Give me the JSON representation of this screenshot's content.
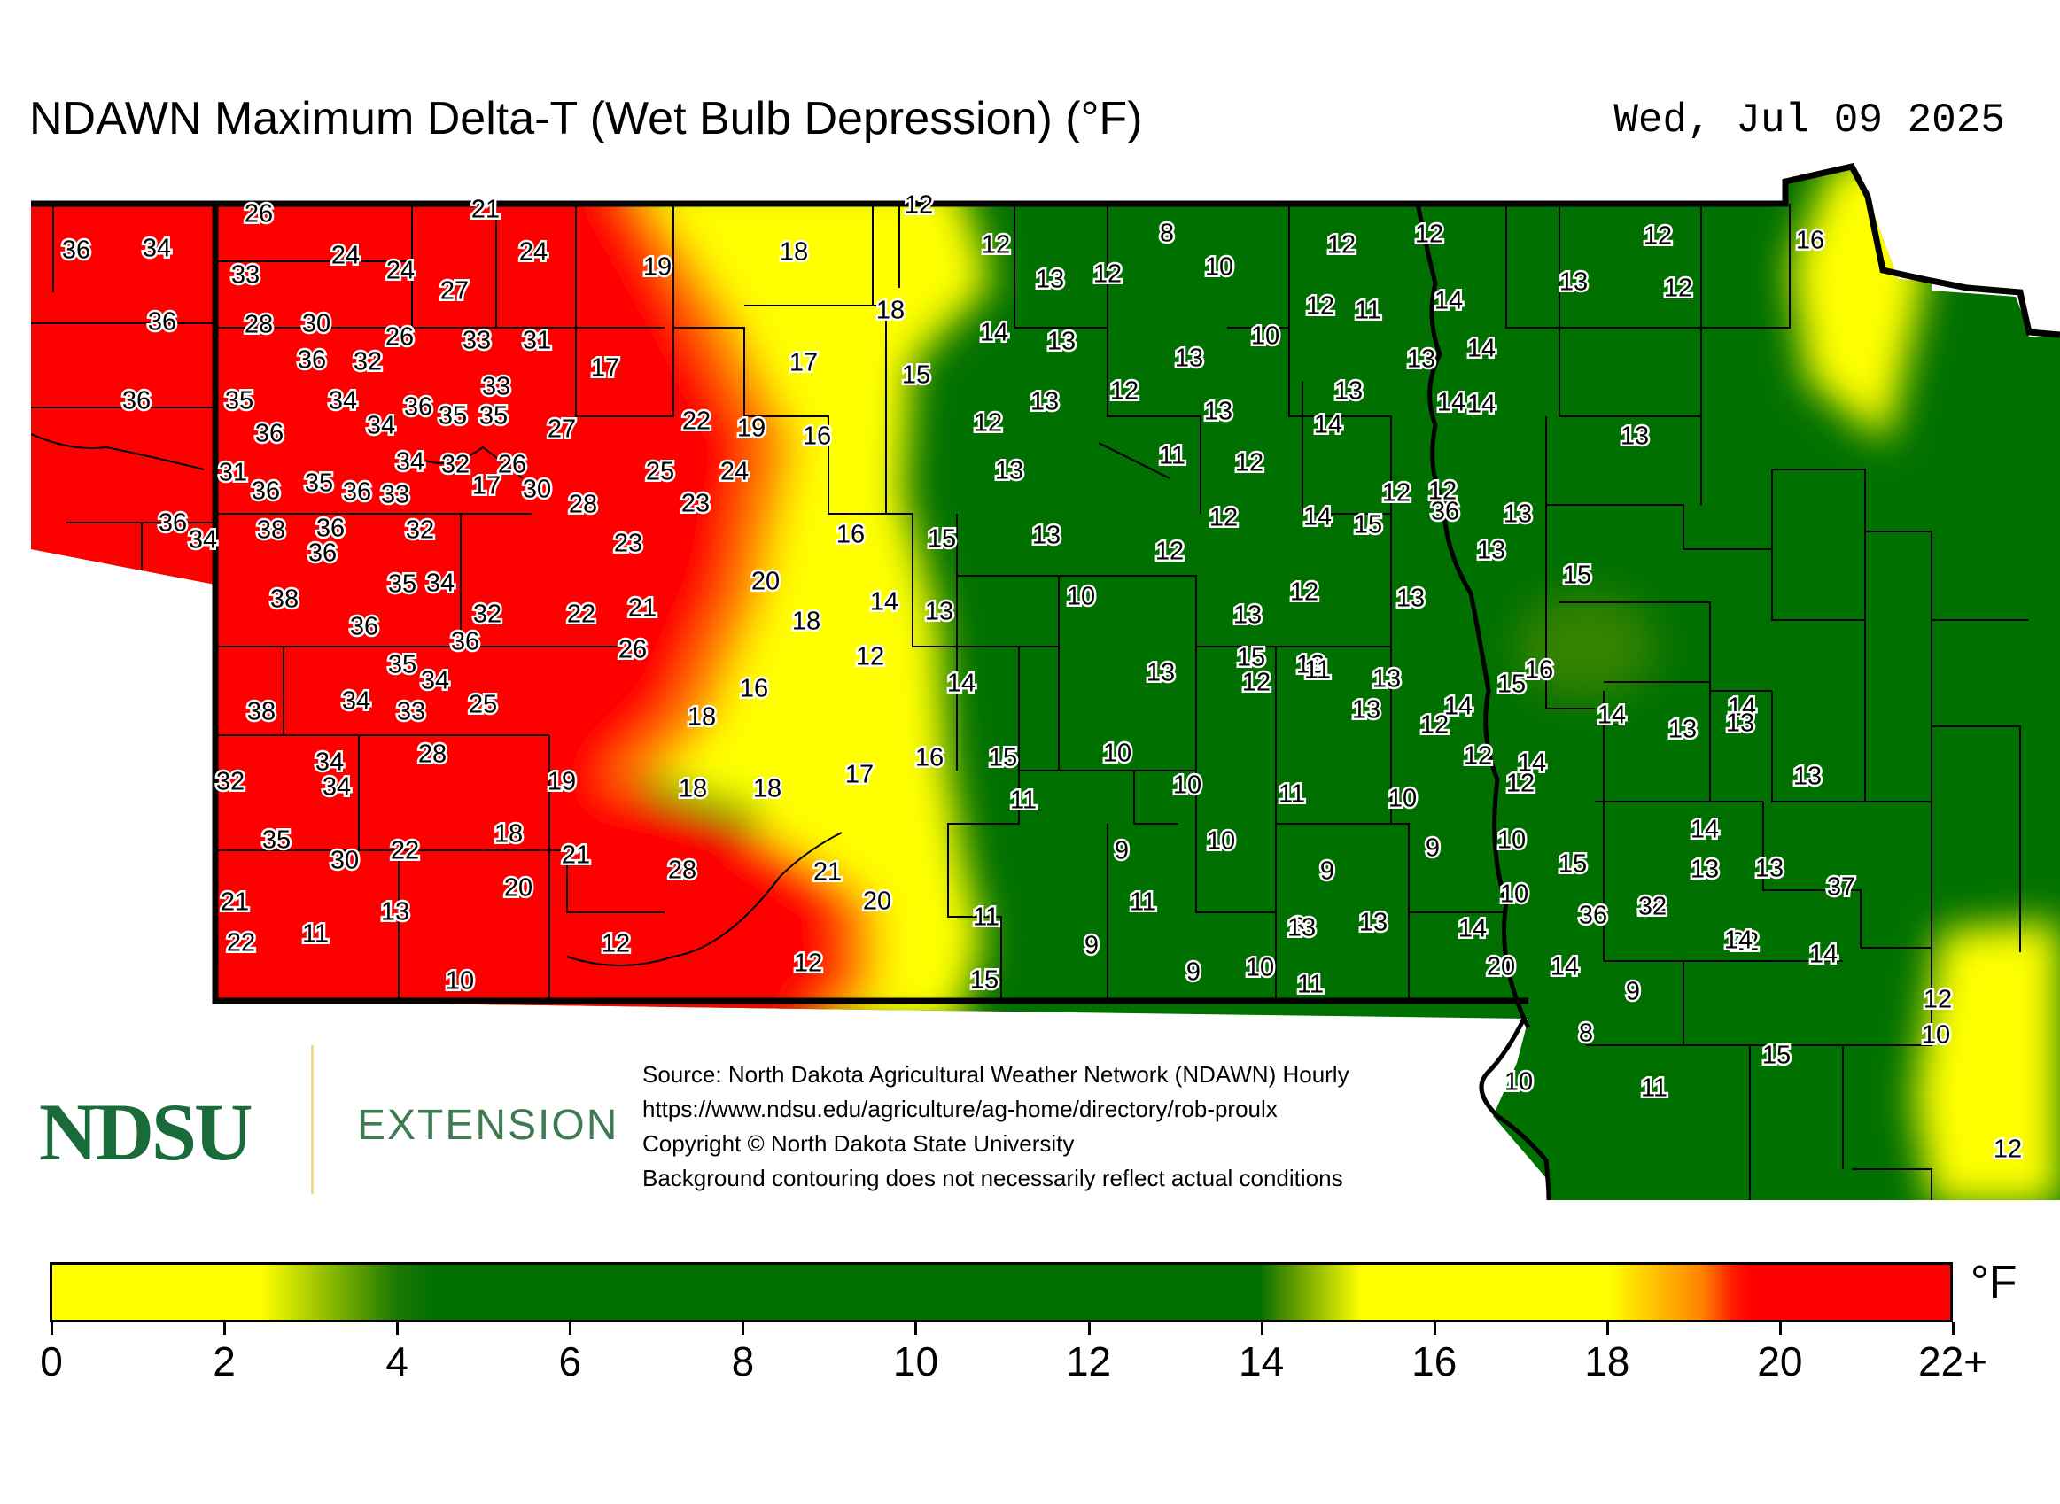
{
  "title": "NDAWN Maximum Delta-T (Wet Bulb Depression) (°F)",
  "date": "Wed, Jul 09 2025",
  "logo": {
    "mark": "NDSU",
    "extension": "EXTENSION"
  },
  "source_lines": [
    "Source: North Dakota Agricultural Weather Network (NDAWN) Hourly",
    "https://www.ndsu.edu/agriculture/ag-home/directory/rob-proulx",
    "Copyright © North Dakota State University",
    "Background contouring does not necessarily reflect actual conditions"
  ],
  "colorbar": {
    "unit": "°F",
    "ticks": [
      "0",
      "2",
      "4",
      "6",
      "8",
      "10",
      "12",
      "14",
      "16",
      "18",
      "20",
      "22+"
    ],
    "colors": {
      "low": "#ffff00",
      "mid": "#007000",
      "high": "#ff0000"
    }
  },
  "stations": [
    {
      "v": "26"
    },
    {
      "v": "21"
    },
    {
      "v": "12"
    },
    {
      "v": "36"
    },
    {
      "v": "34"
    },
    {
      "v": "24"
    },
    {
      "v": "33"
    },
    {
      "v": "24"
    },
    {
      "v": "24"
    },
    {
      "v": "27"
    },
    {
      "v": "19"
    },
    {
      "v": "18"
    },
    {
      "v": "12"
    },
    {
      "v": "13"
    },
    {
      "v": "12"
    },
    {
      "v": "8"
    },
    {
      "v": "10"
    },
    {
      "v": "12"
    },
    {
      "v": "12"
    },
    {
      "v": "12"
    },
    {
      "v": "13"
    },
    {
      "v": "12"
    },
    {
      "v": "16"
    },
    {
      "v": "36"
    },
    {
      "v": "28"
    },
    {
      "v": "30"
    },
    {
      "v": "18"
    },
    {
      "v": "14"
    },
    {
      "v": "13"
    },
    {
      "v": "12"
    },
    {
      "v": "11"
    },
    {
      "v": "14"
    },
    {
      "v": "36"
    },
    {
      "v": "32"
    },
    {
      "v": "26"
    },
    {
      "v": "33"
    },
    {
      "v": "31"
    },
    {
      "v": "17"
    },
    {
      "v": "17"
    },
    {
      "v": "15"
    },
    {
      "v": "13"
    },
    {
      "v": "10"
    },
    {
      "v": "13"
    },
    {
      "v": "14"
    },
    {
      "v": "36"
    },
    {
      "v": "35"
    },
    {
      "v": "34"
    },
    {
      "v": "36"
    },
    {
      "v": "35"
    },
    {
      "v": "35"
    },
    {
      "v": "33"
    },
    {
      "v": "13"
    },
    {
      "v": "12"
    },
    {
      "v": "13"
    },
    {
      "v": "13"
    },
    {
      "v": "14"
    },
    {
      "v": "36"
    },
    {
      "v": "34"
    },
    {
      "v": "27"
    },
    {
      "v": "22"
    },
    {
      "v": "19"
    },
    {
      "v": "16"
    },
    {
      "v": "12"
    },
    {
      "v": "14"
    },
    {
      "v": "14"
    },
    {
      "v": "13"
    },
    {
      "v": "26"
    },
    {
      "v": "34"
    },
    {
      "v": "32"
    },
    {
      "v": "11"
    },
    {
      "v": "12"
    },
    {
      "v": "31"
    },
    {
      "v": "36"
    },
    {
      "v": "35"
    },
    {
      "v": "36"
    },
    {
      "v": "33"
    },
    {
      "v": "17"
    },
    {
      "v": "30"
    },
    {
      "v": "25"
    },
    {
      "v": "24"
    },
    {
      "v": "13"
    },
    {
      "v": "12"
    },
    {
      "v": "28"
    },
    {
      "v": "23"
    },
    {
      "v": "12"
    },
    {
      "v": "13"
    },
    {
      "v": "36"
    },
    {
      "v": "34"
    },
    {
      "v": "38"
    },
    {
      "v": "36"
    },
    {
      "v": "36"
    },
    {
      "v": "32"
    },
    {
      "v": "36"
    },
    {
      "v": "23"
    },
    {
      "v": "16"
    },
    {
      "v": "15"
    },
    {
      "v": "13"
    },
    {
      "v": "12"
    },
    {
      "v": "12"
    },
    {
      "v": "14"
    },
    {
      "v": "15"
    },
    {
      "v": "13"
    },
    {
      "v": "35"
    },
    {
      "v": "34"
    },
    {
      "v": "20"
    },
    {
      "v": "15"
    },
    {
      "v": "38"
    },
    {
      "v": "32"
    },
    {
      "v": "22"
    },
    {
      "v": "21"
    },
    {
      "v": "18"
    },
    {
      "v": "14"
    },
    {
      "v": "13"
    },
    {
      "v": "10"
    },
    {
      "v": "13"
    },
    {
      "v": "12"
    },
    {
      "v": "13"
    },
    {
      "v": "36"
    },
    {
      "v": "36"
    },
    {
      "v": "26"
    },
    {
      "v": "16"
    },
    {
      "v": "12"
    },
    {
      "v": "14"
    },
    {
      "v": "15"
    },
    {
      "v": "13"
    },
    {
      "v": "35"
    },
    {
      "v": "34"
    },
    {
      "v": "34"
    },
    {
      "v": "25"
    },
    {
      "v": "16"
    },
    {
      "v": "14"
    },
    {
      "v": "13"
    },
    {
      "v": "12"
    },
    {
      "v": "11"
    },
    {
      "v": "13"
    },
    {
      "v": "14"
    },
    {
      "v": "15"
    },
    {
      "v": "38"
    },
    {
      "v": "33"
    },
    {
      "v": "18"
    },
    {
      "v": "13"
    },
    {
      "v": "12"
    },
    {
      "v": "14"
    },
    {
      "v": "13"
    },
    {
      "v": "34"
    },
    {
      "v": "28"
    },
    {
      "v": "16"
    },
    {
      "v": "15"
    },
    {
      "v": "10"
    },
    {
      "v": "12"
    },
    {
      "v": "13"
    },
    {
      "v": "14"
    },
    {
      "v": "32"
    },
    {
      "v": "34"
    },
    {
      "v": "19"
    },
    {
      "v": "18"
    },
    {
      "v": "18"
    },
    {
      "v": "17"
    },
    {
      "v": "11"
    },
    {
      "v": "10"
    },
    {
      "v": "11"
    },
    {
      "v": "10"
    },
    {
      "v": "12"
    },
    {
      "v": "13"
    },
    {
      "v": "35"
    },
    {
      "v": "22"
    },
    {
      "v": "18"
    },
    {
      "v": "21"
    },
    {
      "v": "9"
    },
    {
      "v": "10"
    },
    {
      "v": "9"
    },
    {
      "v": "10"
    },
    {
      "v": "9"
    },
    {
      "v": "14"
    },
    {
      "v": "30"
    },
    {
      "v": "20"
    },
    {
      "v": "28"
    },
    {
      "v": "21"
    },
    {
      "v": "20"
    },
    {
      "v": "11"
    },
    {
      "v": "10"
    },
    {
      "v": "15"
    },
    {
      "v": "14"
    },
    {
      "v": "13"
    },
    {
      "v": "13"
    },
    {
      "v": "37"
    },
    {
      "v": "21"
    },
    {
      "v": "13"
    },
    {
      "v": "11"
    },
    {
      "v": "9"
    },
    {
      "v": "8"
    },
    {
      "v": "13"
    },
    {
      "v": "14"
    },
    {
      "v": "36"
    },
    {
      "v": "32"
    },
    {
      "v": "22"
    },
    {
      "v": "11"
    },
    {
      "v": "12"
    },
    {
      "v": "13"
    },
    {
      "v": "22"
    },
    {
      "v": "14"
    },
    {
      "v": "14"
    },
    {
      "v": "10"
    },
    {
      "v": "12"
    },
    {
      "v": "9"
    },
    {
      "v": "10"
    },
    {
      "v": "11"
    },
    {
      "v": "20"
    },
    {
      "v": "14"
    },
    {
      "v": "9"
    },
    {
      "v": "15"
    },
    {
      "v": "12"
    },
    {
      "v": "8"
    },
    {
      "v": "10"
    },
    {
      "v": "15"
    },
    {
      "v": "10"
    },
    {
      "v": "11"
    },
    {
      "v": "12"
    }
  ]
}
